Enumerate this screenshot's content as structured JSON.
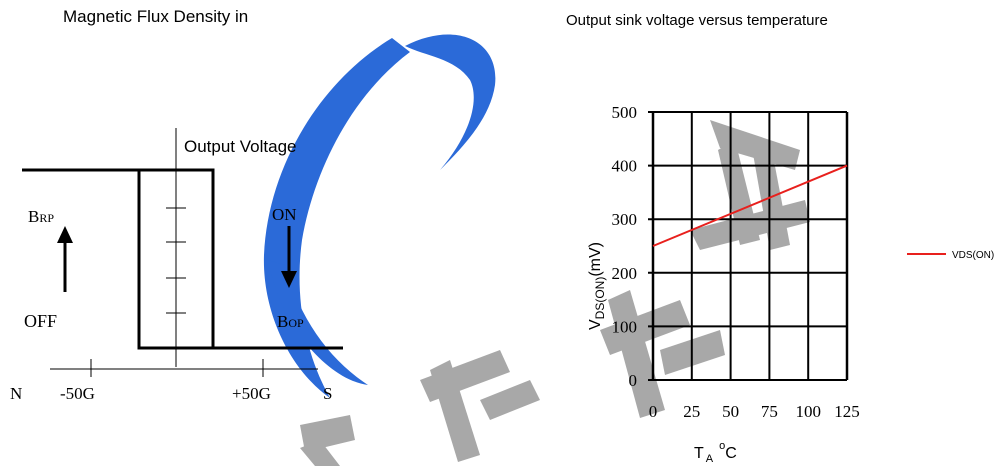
{
  "left_panel": {
    "title": "Magnetic Flux Density in",
    "output_axis_label": "Output Voltage",
    "labels": {
      "brp_main": "B",
      "brp_sub": "RP",
      "off": "OFF",
      "on": "ON",
      "bop_main": "B",
      "bop_sub": "OP"
    },
    "x_axis": {
      "n": "N",
      "neg": "-50G",
      "pos": "+50G",
      "s": "S"
    }
  },
  "colors": {
    "series": "#e8201d",
    "grid": "#000000",
    "watermark_blue": "#2b6ad8",
    "watermark_gray": "#a8a8a8"
  },
  "chart_data": {
    "type": "line",
    "title": "Output sink voltage versus temperature",
    "xlabel_main": "T",
    "xlabel_sub": "A",
    "xlabel_sup": "o",
    "xlabel_unit": "C",
    "ylabel_main": "V",
    "ylabel_sub": "DS(ON)",
    "ylabel_unit": "(mV)",
    "x_ticks": [
      0,
      25,
      50,
      75,
      100,
      125
    ],
    "y_ticks": [
      0,
      100,
      200,
      300,
      400,
      500
    ],
    "xlim": [
      0,
      125
    ],
    "ylim": [
      0,
      500
    ],
    "grid": true,
    "legend_position": "right",
    "series": [
      {
        "name": "VDS(ON)",
        "x": [
          0,
          125
        ],
        "y": [
          250,
          400
        ]
      }
    ]
  }
}
